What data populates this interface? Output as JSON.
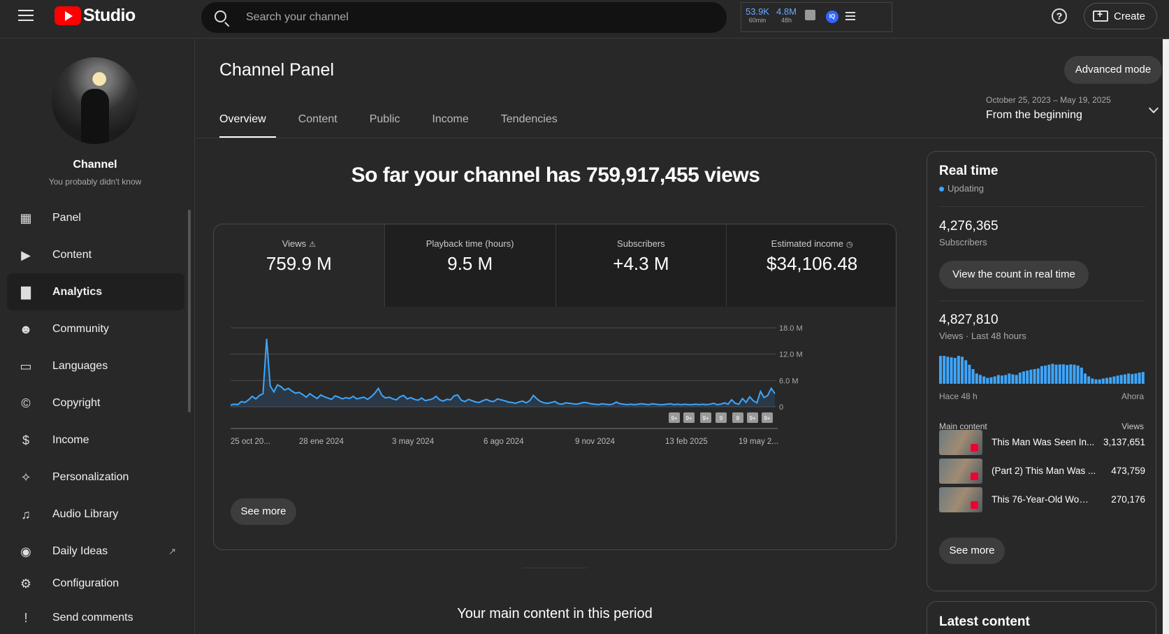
{
  "topbar": {
    "logo_text": "Studio",
    "search_placeholder": "Search your channel",
    "ext_stats": [
      {
        "value": "53.9K",
        "label": "60min"
      },
      {
        "value": "4.8M",
        "label": "48h"
      }
    ],
    "ext_badge": "IQ",
    "help": "?",
    "create_label": "Create"
  },
  "sidebar": {
    "channel_name": "Channel",
    "channel_sub": "You probably didn't know",
    "items": [
      {
        "label": "Panel",
        "icon": "panel-icon",
        "glyph": "▦"
      },
      {
        "label": "Content",
        "icon": "content-icon",
        "glyph": "▶"
      },
      {
        "label": "Analytics",
        "icon": "analytics-icon",
        "glyph": "▇"
      },
      {
        "label": "Community",
        "icon": "community-icon",
        "glyph": "☻"
      },
      {
        "label": "Languages",
        "icon": "languages-icon",
        "glyph": "▭"
      },
      {
        "label": "Copyright",
        "icon": "copyright-icon",
        "glyph": "©"
      },
      {
        "label": "Income",
        "icon": "income-icon",
        "glyph": "$"
      },
      {
        "label": "Personalization",
        "icon": "wand-icon",
        "glyph": "✧"
      },
      {
        "label": "Audio Library",
        "icon": "audio-library-icon",
        "glyph": "♫"
      },
      {
        "label": "Daily Ideas",
        "icon": "daily-ideas-icon",
        "glyph": "◉"
      },
      {
        "label": "Configuration",
        "icon": "gear-icon",
        "glyph": "⚙"
      },
      {
        "label": "Send comments",
        "icon": "feedback-icon",
        "glyph": "!"
      }
    ]
  },
  "main": {
    "title": "Channel Panel",
    "advanced_mode": "Advanced mode",
    "tabs": [
      "Overview",
      "Content",
      "Public",
      "Income",
      "Tendencies"
    ],
    "date_range": "October 25, 2023 – May 19, 2025",
    "date_label": "From the beginning",
    "headline": "So far your channel has 759,917,455 views",
    "metrics": [
      {
        "label": "Views",
        "value": "759.9 M",
        "icon": "warning-icon"
      },
      {
        "label": "Playback time (hours)",
        "value": "9.5 M",
        "icon": ""
      },
      {
        "label": "Subscribers",
        "value": "+4.3 M",
        "icon": ""
      },
      {
        "label": "Estimated income",
        "value": "$34,106.48",
        "icon": "clock-icon"
      }
    ],
    "see_more": "See more",
    "main_content_title": "Your main content in this period",
    "markers": [
      "9+",
      "9+",
      "9+",
      "9",
      "8",
      "9+",
      "9+"
    ]
  },
  "chart_data": {
    "type": "area",
    "x_ticks": [
      "25 oct 20...",
      "28 ene 2024",
      "3 may 2024",
      "6 ago 2024",
      "9 nov 2024",
      "13 feb 2025",
      "19 may 2..."
    ],
    "y_ticks": [
      "0",
      "6.0 M",
      "12.0 M",
      "18.0 M"
    ],
    "ylim": [
      0,
      18
    ],
    "values": [
      0.4,
      0.6,
      0.5,
      1.2,
      1.0,
      1.6,
      2.4,
      1.8,
      2.6,
      3.0,
      15.5,
      4.8,
      3.4,
      5.0,
      4.6,
      3.8,
      4.2,
      3.6,
      3.1,
      3.3,
      2.8,
      2.2,
      3.0,
      2.4,
      1.9,
      2.7,
      2.3,
      2.0,
      1.7,
      2.5,
      2.2,
      1.8,
      2.1,
      1.9,
      2.4,
      1.8,
      2.0,
      2.2,
      1.7,
      2.3,
      3.1,
      4.2,
      2.6,
      2.0,
      2.2,
      1.8,
      1.6,
      2.3,
      2.6,
      1.8,
      2.1,
      1.7,
      1.5,
      2.0,
      1.4,
      1.6,
      1.8,
      2.4,
      1.6,
      1.3,
      1.7,
      1.6,
      2.5,
      2.7,
      1.5,
      1.2,
      1.7,
      1.4,
      1.1,
      1.0,
      1.4,
      1.7,
      1.3,
      1.2,
      1.8,
      1.6,
      1.4,
      1.1,
      1.0,
      0.8,
      1.1,
      1.3,
      0.9,
      1.4,
      2.6,
      1.8,
      1.2,
      0.9,
      0.8,
      1.0,
      1.2,
      0.7,
      0.6,
      0.9,
      0.8,
      0.7,
      0.6,
      0.8,
      1.0,
      0.9,
      0.7,
      0.6,
      0.5,
      0.7,
      0.6,
      0.5,
      0.6,
      1.1,
      0.7,
      0.6,
      0.5,
      0.6,
      0.5,
      0.6,
      0.7,
      0.6,
      0.5,
      0.7,
      0.6,
      0.5,
      0.5,
      0.6,
      0.7,
      0.5,
      0.6,
      0.5,
      0.6,
      0.5,
      0.5,
      0.6,
      0.5,
      0.6,
      0.5,
      0.6,
      0.8,
      0.5,
      0.6,
      0.9,
      0.6,
      1.6,
      0.8,
      0.6,
      1.9,
      1.0,
      2.3,
      1.4,
      0.9,
      3.5,
      2.1,
      2.6,
      4.2,
      3.0
    ],
    "color": "#3ea6ff"
  },
  "realtime": {
    "title": "Real time",
    "status": "Updating",
    "subscribers_value": "4,276,365",
    "subscribers_label": "Subscribers",
    "button": "View the count in real time",
    "views_value": "4,827,810",
    "views_label": "Views · Last 48 hours",
    "bars": [
      0.95,
      0.95,
      0.92,
      0.9,
      0.88,
      0.95,
      0.92,
      0.8,
      0.65,
      0.5,
      0.35,
      0.3,
      0.25,
      0.2,
      0.22,
      0.25,
      0.3,
      0.28,
      0.3,
      0.35,
      0.32,
      0.3,
      0.38,
      0.42,
      0.45,
      0.48,
      0.5,
      0.52,
      0.6,
      0.62,
      0.65,
      0.68,
      0.65,
      0.66,
      0.66,
      0.64,
      0.66,
      0.65,
      0.62,
      0.55,
      0.35,
      0.25,
      0.18,
      0.15,
      0.15,
      0.18,
      0.2,
      0.22,
      0.25,
      0.28,
      0.3,
      0.32,
      0.35,
      0.33,
      0.35,
      0.38,
      0.4
    ],
    "from_label": "Hace 48 h",
    "to_label": "Ahora",
    "list_title": "Main content",
    "list_metric": "Views",
    "rows": [
      {
        "title": "This Man Was Seen In...",
        "value": "3,137,651"
      },
      {
        "title": "(Part 2) This Man Was ...",
        "value": "473,759"
      },
      {
        "title": "This 76-Year-Old Woma...",
        "value": "270,176"
      }
    ],
    "see_more": "See more"
  },
  "latest": {
    "title": "Latest content"
  }
}
